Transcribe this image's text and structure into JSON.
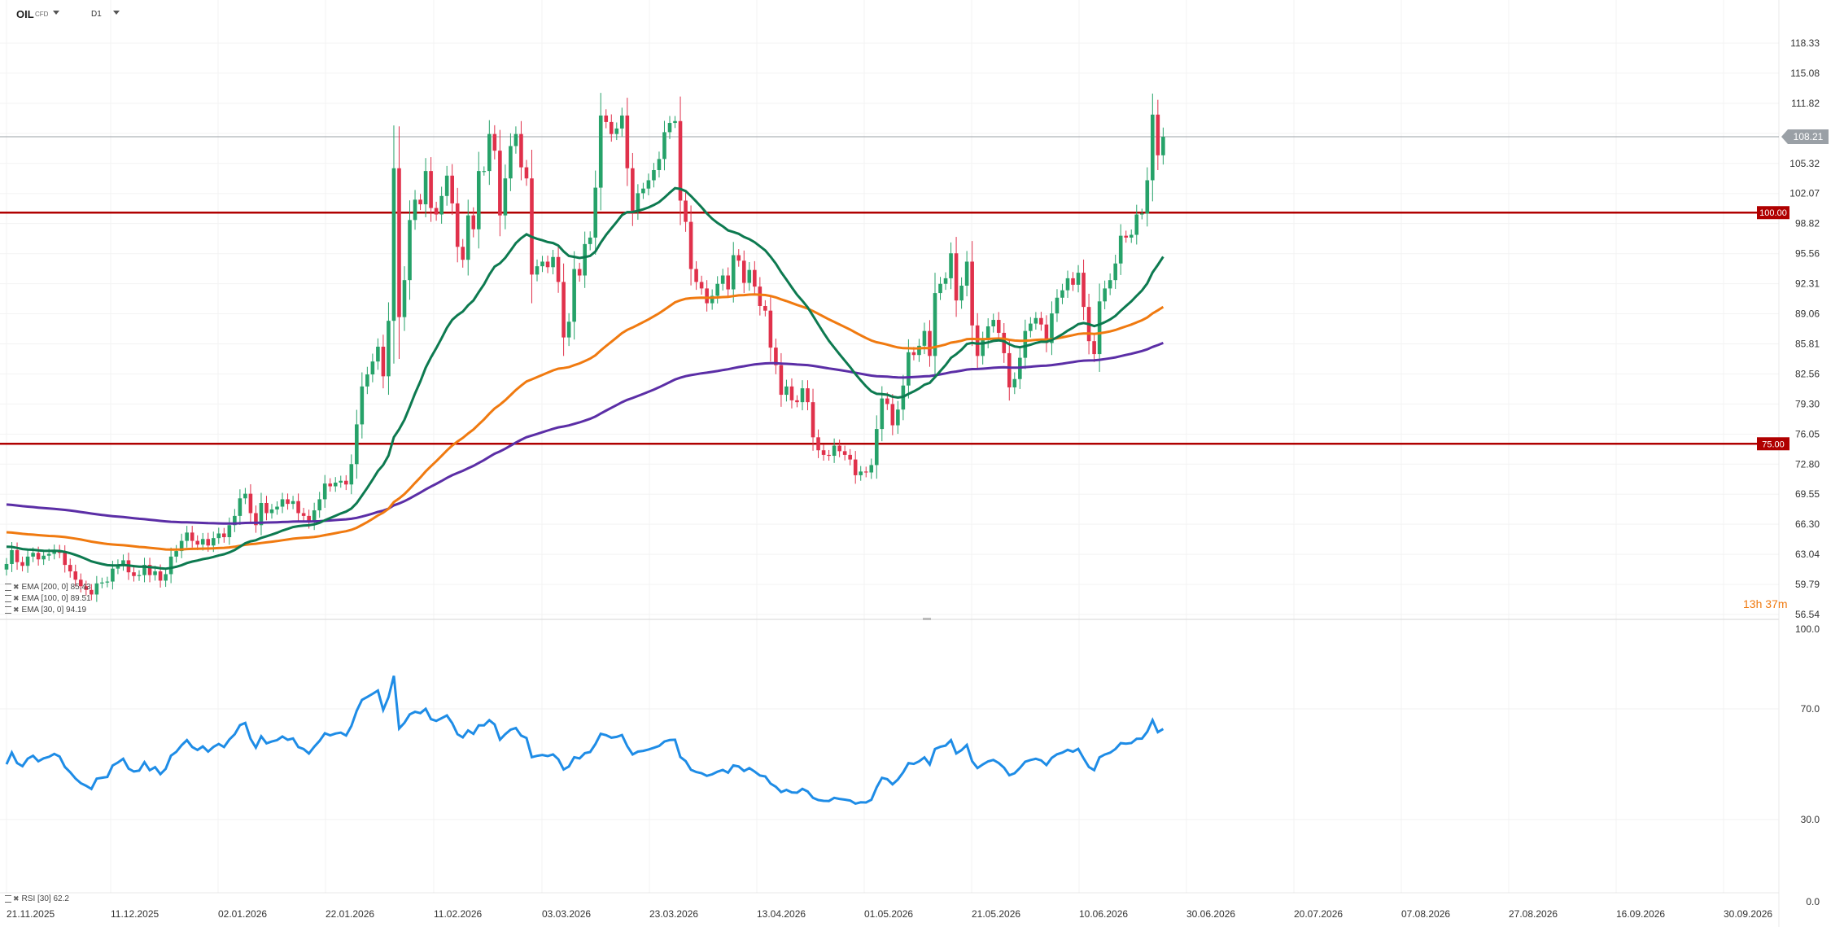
{
  "header": {
    "symbol": "OIL",
    "symbol_sub": "CFD",
    "timeframe": "D1"
  },
  "timer": "13h 37m",
  "legends": {
    "ema200": "EMA [200, 0] 85.43",
    "ema100": "EMA [100, 0] 89.51",
    "ema30": "EMA [30, 0] 94.19",
    "rsi": "RSI [30] 62.2"
  },
  "colors": {
    "up": "#26a269",
    "down": "#e0314b",
    "ema30": "#0d7a50",
    "ema100": "#f07a10",
    "ema200": "#5b2ea6",
    "rsi": "#1e8ce6",
    "level": "#b00000",
    "last_price_tag": "#9aa0a6"
  },
  "chart_data": [
    {
      "type": "candlestick",
      "yticks": [
        "118.33",
        "115.08",
        "111.82",
        "108.57",
        "105.32",
        "102.07",
        "98.82",
        "95.56",
        "92.31",
        "89.06",
        "85.81",
        "82.56",
        "79.30",
        "76.05",
        "72.80",
        "69.55",
        "66.30",
        "63.04",
        "59.79",
        "56.54"
      ],
      "ylim": [
        56.54,
        118.33
      ],
      "xticks": [
        "21.11.2025",
        "11.12.2025",
        "02.01.2026",
        "22.01.2026",
        "11.02.2026",
        "03.03.2026",
        "23.03.2026",
        "13.04.2026",
        "01.05.2026",
        "21.05.2026",
        "10.06.2026",
        "30.06.2026",
        "20.07.2026",
        "07.08.2026",
        "27.08.2026",
        "16.09.2026",
        "30.09.2026"
      ],
      "last_price": "108.21",
      "levels": [
        {
          "label": "100.00",
          "value": 100.0
        },
        {
          "label": "75.00",
          "value": 75.0
        }
      ],
      "closes": [
        62.0,
        63.5,
        62.2,
        61.8,
        62.8,
        63.2,
        62.5,
        62.9,
        63.1,
        63.5,
        63.2,
        61.9,
        61.2,
        60.3,
        59.6,
        59.2,
        58.7,
        59.9,
        60.0,
        60.1,
        61.5,
        61.9,
        62.4,
        61.1,
        60.7,
        60.8,
        61.9,
        60.8,
        61.2,
        60.2,
        60.9,
        62.8,
        63.4,
        64.5,
        65.4,
        64.5,
        64.1,
        64.7,
        64.0,
        64.8,
        65.3,
        64.9,
        66.2,
        67.2,
        69.1,
        69.6,
        67.5,
        66.2,
        68.6,
        67.5,
        67.9,
        68.2,
        69.0,
        68.5,
        68.8,
        67.5,
        67.2,
        66.5,
        67.8,
        69.0,
        70.7,
        70.4,
        70.8,
        71.0,
        70.6,
        72.8,
        77.1,
        81.2,
        82.5,
        83.9,
        85.5,
        82.3,
        88.3,
        104.8,
        88.7,
        92.7,
        99.2,
        101.4,
        100.9,
        104.5,
        100.5,
        99.8,
        101.8,
        104.0,
        101.0,
        96.3,
        94.9,
        99.7,
        98.2,
        104.5,
        104.5,
        108.5,
        106.7,
        99.7,
        103.7,
        107.2,
        108.5,
        104.9,
        103.7,
        93.3,
        94.2,
        94.7,
        94.1,
        95.2,
        92.5,
        86.5,
        88.2,
        93.9,
        93.2,
        96.6,
        97.3,
        102.7,
        110.5,
        109.8,
        108.5,
        109.1,
        110.5,
        104.8,
        100.2,
        102.1,
        102.6,
        103.5,
        104.6,
        105.8,
        108.7,
        109.7,
        109.9,
        101.3,
        99.0,
        93.9,
        92.5,
        91.8,
        90.2,
        91.0,
        92.3,
        93.2,
        91.7,
        95.4,
        94.8,
        92.4,
        93.8,
        92.0,
        89.9,
        89.4,
        85.4,
        83.5,
        80.3,
        81.2,
        79.7,
        79.5,
        81.0,
        79.5,
        75.7,
        74.3,
        73.8,
        73.7,
        74.8,
        74.2,
        73.8,
        73.3,
        71.6,
        72.0,
        71.9,
        72.7,
        76.6,
        79.9,
        79.3,
        77.0,
        78.7,
        81.3,
        84.9,
        84.6,
        85.6,
        87.2,
        84.5,
        91.3,
        92.3,
        92.9,
        95.6,
        90.5,
        92.1,
        94.7,
        87.8,
        84.5,
        86.2,
        87.7,
        88.4,
        87.0,
        84.8,
        81.1,
        82.0,
        84.3,
        87.2,
        88.0,
        88.6,
        87.9,
        85.9,
        89.1,
        90.8,
        91.6,
        92.9,
        92.2,
        93.5,
        89.8,
        86.1,
        84.7,
        90.4,
        91.8,
        92.7,
        94.5,
        97.5,
        97.3,
        97.6,
        99.8,
        99.9,
        103.5,
        110.6,
        106.2,
        108.2
      ]
    },
    {
      "type": "line",
      "title": "RSI",
      "yticks": [
        "100.0",
        "70.0",
        "30.0",
        "0.0"
      ],
      "ylim": [
        0,
        100
      ]
    }
  ]
}
